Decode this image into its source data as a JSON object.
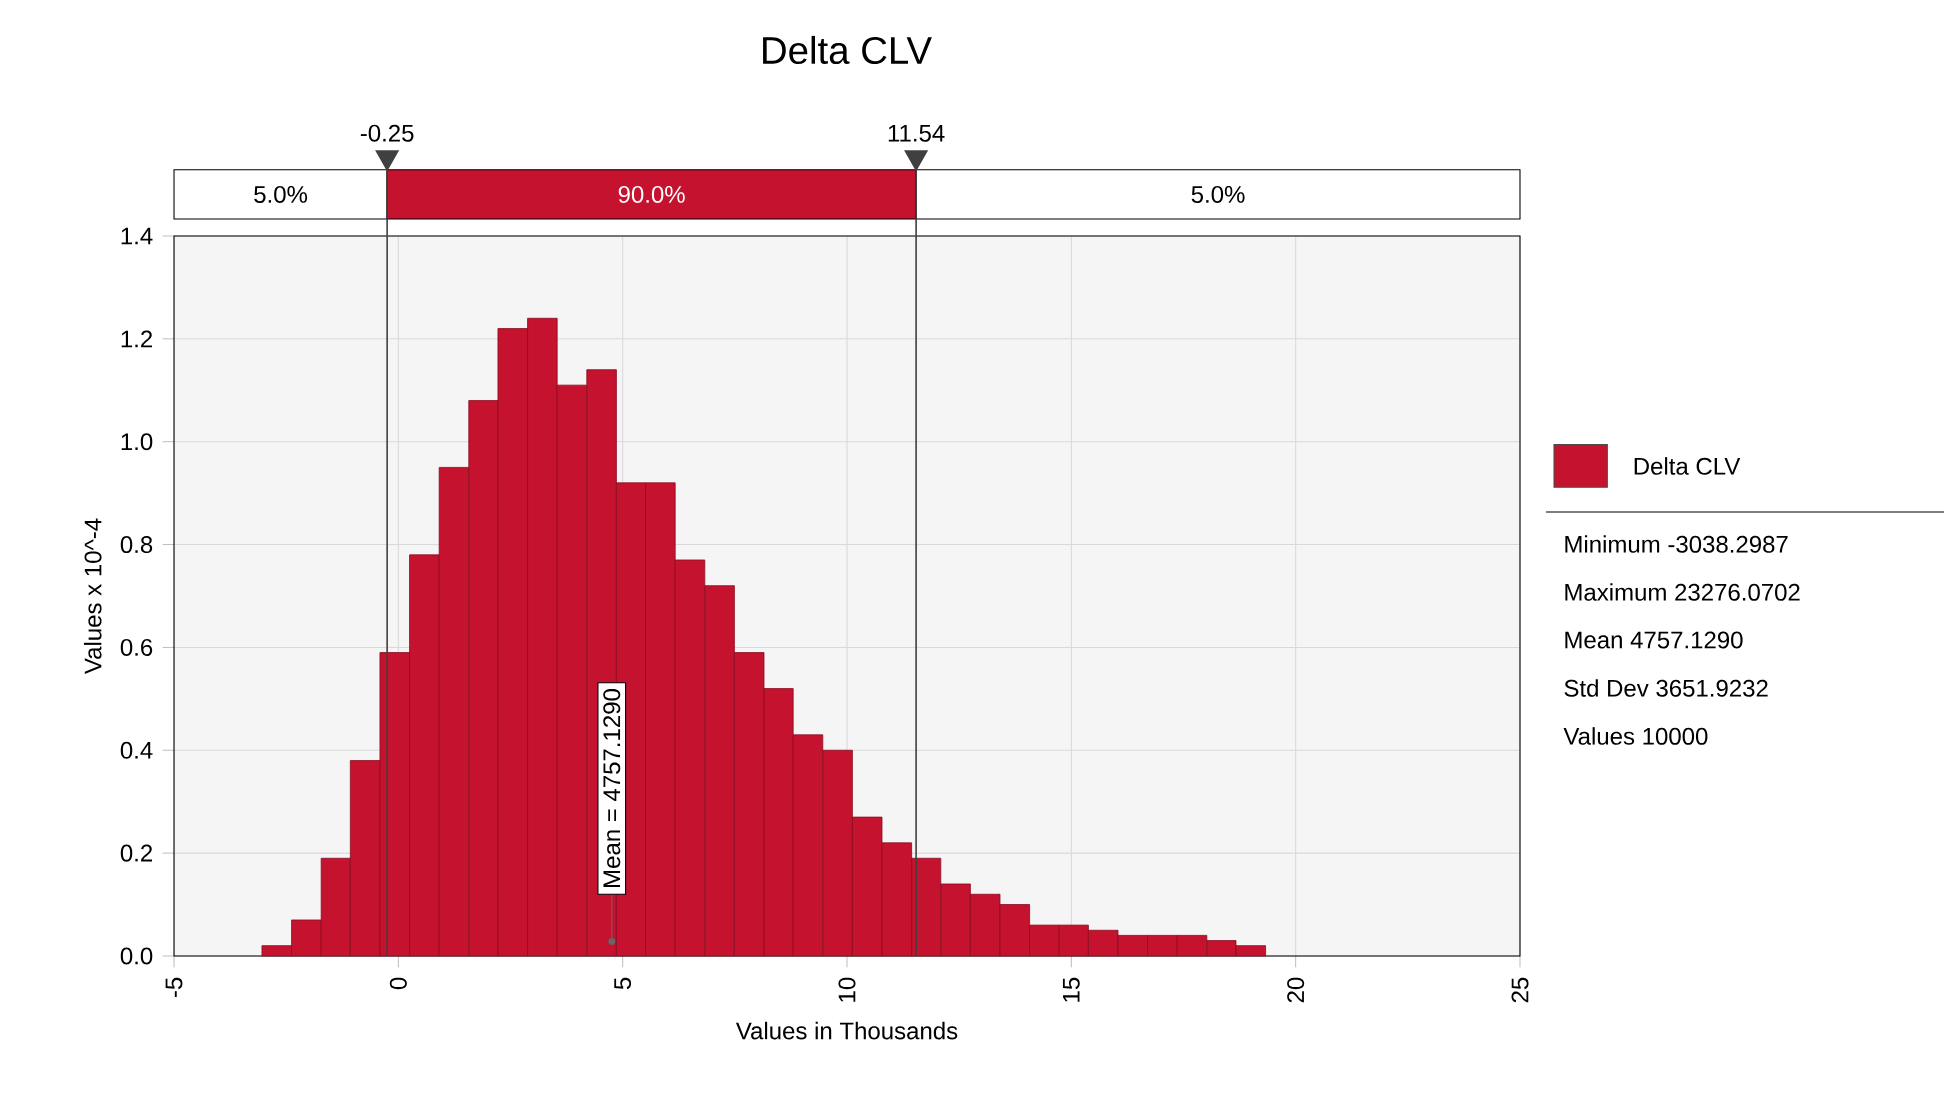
{
  "chart_data": {
    "type": "histogram",
    "title": "Delta CLV",
    "xlabel": "Values in Thousands",
    "ylabel": "Values x 10^-4",
    "bins": [
      -3.04,
      -2.38,
      -1.72,
      -1.07,
      -0.41,
      0.25,
      0.91,
      1.57,
      2.22,
      2.88,
      3.54,
      4.2,
      4.86,
      5.51,
      6.17,
      6.83,
      7.49,
      8.15,
      8.8,
      9.46,
      10.12,
      10.78,
      11.44,
      12.09,
      12.75,
      13.41,
      14.07,
      14.73,
      15.38,
      16.04,
      16.7,
      17.36,
      18.02,
      18.67,
      19.33
    ],
    "series": [
      {
        "name": "Delta CLV",
        "color": "#c4122f",
        "values": [
          0.02,
          0.07,
          0.19,
          0.38,
          0.59,
          0.78,
          0.95,
          1.08,
          1.22,
          1.24,
          1.11,
          1.14,
          0.92,
          0.92,
          0.77,
          0.72,
          0.59,
          0.52,
          0.43,
          0.4,
          0.27,
          0.22,
          0.19,
          0.14,
          0.12,
          0.1,
          0.06,
          0.06,
          0.05,
          0.04,
          0.04,
          0.04,
          0.03,
          0.02
        ]
      }
    ],
    "xlim": [
      -5,
      25
    ],
    "xticks": [
      -5,
      0,
      5,
      10,
      15,
      20,
      25
    ],
    "ylim": [
      0,
      1.4
    ],
    "yticks": [
      {
        "value": 0,
        "label": "0.0"
      },
      0.2,
      0.4,
      0.6,
      0.8,
      {
        "value": 1,
        "label": "1.0"
      },
      1.2,
      1.4
    ],
    "grid": true,
    "legend": "right",
    "ref_lines": [
      {
        "axis": "x",
        "value": -0.25,
        "label": "-0.25"
      },
      {
        "axis": "x",
        "value": 11.54,
        "label": "11.54"
      }
    ],
    "annotations": [
      {
        "text": "Mean = 4757.1290",
        "x": 4.757,
        "y": 0
      },
      "5.0%",
      "90.0%",
      "5.0%",
      "Minimum -3038.2987",
      "Maximum 23276.0702",
      "Mean 4757.1290",
      "Std Dev 3651.9232",
      "Values 10000"
    ]
  }
}
